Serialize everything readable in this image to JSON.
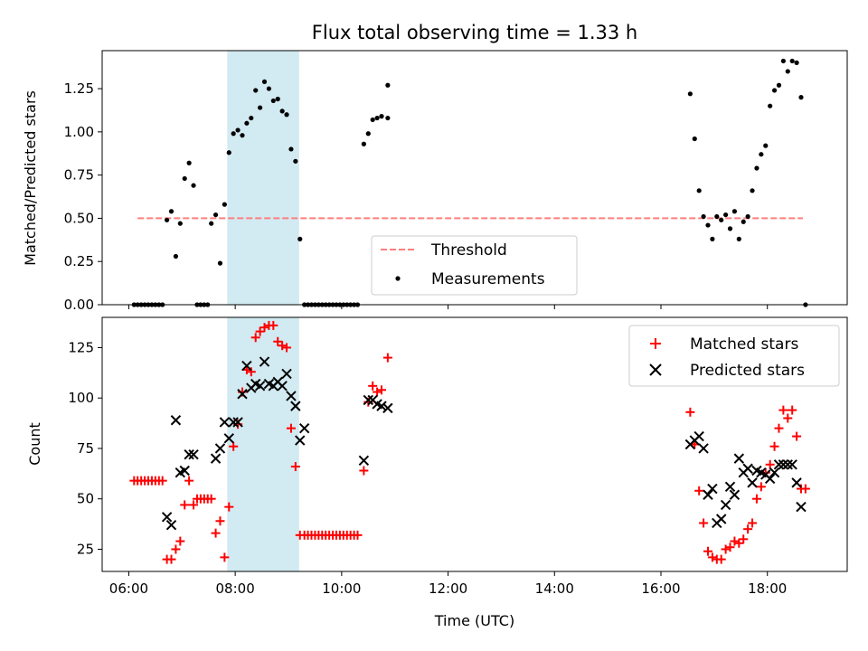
{
  "chart_data": [
    {
      "type": "scatter",
      "title": "Flux total observing time = 1.33 h",
      "xlabel": "",
      "ylabel": "Matched/Predicted stars",
      "ylim": [
        0,
        1.47
      ],
      "y_ticks": [
        "0.00",
        "0.25",
        "0.50",
        "0.75",
        "1.00",
        "1.25"
      ],
      "shaded_span": {
        "start": "07:51",
        "end": "09:12",
        "color": "#add8e6"
      },
      "threshold": {
        "name": "Threshold",
        "value": 0.5,
        "x_start": "06:10",
        "x_end": "18:40",
        "color": "#ff7f7f",
        "style": "dashed"
      },
      "legend": {
        "position": "lower-center",
        "entries": [
          "Threshold",
          "Measurements"
        ]
      },
      "series": [
        {
          "name": "Measurements",
          "marker": "dot",
          "color": "#000000",
          "points": [
            [
              "06:06",
              0
            ],
            [
              "06:10",
              0
            ],
            [
              "06:14",
              0
            ],
            [
              "06:18",
              0
            ],
            [
              "06:22",
              0
            ],
            [
              "06:26",
              0
            ],
            [
              "06:30",
              0
            ],
            [
              "06:34",
              0
            ],
            [
              "06:38",
              0
            ],
            [
              "06:43",
              0.49
            ],
            [
              "06:48",
              0.54
            ],
            [
              "06:53",
              0.28
            ],
            [
              "06:58",
              0.47
            ],
            [
              "07:03",
              0.73
            ],
            [
              "07:08",
              0.82
            ],
            [
              "07:13",
              0.69
            ],
            [
              "07:17",
              0
            ],
            [
              "07:21",
              0
            ],
            [
              "07:25",
              0
            ],
            [
              "07:29",
              0
            ],
            [
              "07:33",
              0.47
            ],
            [
              "07:38",
              0.52
            ],
            [
              "07:43",
              0.24
            ],
            [
              "07:48",
              0.58
            ],
            [
              "07:53",
              0.88
            ],
            [
              "07:58",
              0.99
            ],
            [
              "08:03",
              1.01
            ],
            [
              "08:08",
              0.98
            ],
            [
              "08:13",
              1.05
            ],
            [
              "08:18",
              1.08
            ],
            [
              "08:23",
              1.24
            ],
            [
              "08:28",
              1.14
            ],
            [
              "08:33",
              1.29
            ],
            [
              "08:38",
              1.25
            ],
            [
              "08:43",
              1.18
            ],
            [
              "08:48",
              1.19
            ],
            [
              "08:53",
              1.12
            ],
            [
              "08:58",
              1.1
            ],
            [
              "09:03",
              0.9
            ],
            [
              "09:08",
              0.83
            ],
            [
              "09:13",
              0.38
            ],
            [
              "09:18",
              0
            ],
            [
              "09:22",
              0
            ],
            [
              "09:26",
              0
            ],
            [
              "09:30",
              0
            ],
            [
              "09:34",
              0
            ],
            [
              "09:38",
              0
            ],
            [
              "09:42",
              0
            ],
            [
              "09:46",
              0
            ],
            [
              "09:50",
              0
            ],
            [
              "09:54",
              0
            ],
            [
              "09:58",
              0
            ],
            [
              "10:02",
              0
            ],
            [
              "10:06",
              0
            ],
            [
              "10:10",
              0
            ],
            [
              "10:14",
              0
            ],
            [
              "10:18",
              0
            ],
            [
              "10:25",
              0.93
            ],
            [
              "10:30",
              0.99
            ],
            [
              "10:35",
              1.07
            ],
            [
              "10:40",
              1.08
            ],
            [
              "10:45",
              1.09
            ],
            [
              "10:52",
              1.08
            ],
            [
              "10:52",
              1.27
            ],
            [
              "16:33",
              1.22
            ],
            [
              "16:38",
              0.96
            ],
            [
              "16:43",
              0.66
            ],
            [
              "16:48",
              0.51
            ],
            [
              "16:53",
              0.46
            ],
            [
              "16:58",
              0.38
            ],
            [
              "17:03",
              0.51
            ],
            [
              "17:08",
              0.49
            ],
            [
              "17:13",
              0.52
            ],
            [
              "17:18",
              0.44
            ],
            [
              "17:23",
              0.54
            ],
            [
              "17:28",
              0.38
            ],
            [
              "17:33",
              0.48
            ],
            [
              "17:38",
              0.51
            ],
            [
              "17:43",
              0.66
            ],
            [
              "17:48",
              0.79
            ],
            [
              "17:53",
              0.87
            ],
            [
              "17:58",
              0.92
            ],
            [
              "18:03",
              1.15
            ],
            [
              "18:08",
              1.24
            ],
            [
              "18:13",
              1.27
            ],
            [
              "18:18",
              1.41
            ],
            [
              "18:23",
              1.35
            ],
            [
              "18:28",
              1.41
            ],
            [
              "18:33",
              1.4
            ],
            [
              "18:38",
              1.2
            ],
            [
              "18:43",
              0
            ]
          ]
        }
      ]
    },
    {
      "type": "scatter",
      "title": "",
      "xlabel": "Time (UTC)",
      "ylabel": "Count",
      "xlim": [
        "05:30",
        "19:30"
      ],
      "ylim": [
        14,
        140
      ],
      "x_ticks": [
        "06:00",
        "08:00",
        "10:00",
        "12:00",
        "14:00",
        "16:00",
        "18:00"
      ],
      "y_ticks": [
        "25",
        "50",
        "75",
        "100",
        "125"
      ],
      "shaded_span": {
        "start": "07:51",
        "end": "09:12",
        "color": "#add8e6"
      },
      "legend": {
        "position": "top-right",
        "entries": [
          "Matched stars",
          "Predicted stars"
        ]
      },
      "series": [
        {
          "name": "Matched stars",
          "marker": "plus",
          "color": "#ff0000",
          "points": [
            [
              "06:06",
              59
            ],
            [
              "06:10",
              59
            ],
            [
              "06:14",
              59
            ],
            [
              "06:18",
              59
            ],
            [
              "06:22",
              59
            ],
            [
              "06:26",
              59
            ],
            [
              "06:30",
              59
            ],
            [
              "06:34",
              59
            ],
            [
              "06:38",
              59
            ],
            [
              "06:43",
              20
            ],
            [
              "06:48",
              20
            ],
            [
              "06:53",
              25
            ],
            [
              "06:58",
              29
            ],
            [
              "07:03",
              47
            ],
            [
              "07:08",
              59
            ],
            [
              "07:13",
              47
            ],
            [
              "07:17",
              50
            ],
            [
              "07:21",
              50
            ],
            [
              "07:25",
              50
            ],
            [
              "07:29",
              50
            ],
            [
              "07:33",
              50
            ],
            [
              "07:38",
              33
            ],
            [
              "07:43",
              39
            ],
            [
              "07:48",
              21
            ],
            [
              "07:53",
              46
            ],
            [
              "07:58",
              76
            ],
            [
              "08:03",
              87
            ],
            [
              "08:08",
              103
            ],
            [
              "08:13",
              114
            ],
            [
              "08:18",
              113
            ],
            [
              "08:23",
              130
            ],
            [
              "08:28",
              133
            ],
            [
              "08:33",
              135
            ],
            [
              "08:38",
              136
            ],
            [
              "08:43",
              136
            ],
            [
              "08:48",
              128
            ],
            [
              "08:53",
              126
            ],
            [
              "08:58",
              125
            ],
            [
              "09:03",
              85
            ],
            [
              "09:08",
              66
            ],
            [
              "09:13",
              32
            ],
            [
              "09:18",
              32
            ],
            [
              "09:22",
              32
            ],
            [
              "09:26",
              32
            ],
            [
              "09:30",
              32
            ],
            [
              "09:34",
              32
            ],
            [
              "09:38",
              32
            ],
            [
              "09:42",
              32
            ],
            [
              "09:46",
              32
            ],
            [
              "09:50",
              32
            ],
            [
              "09:54",
              32
            ],
            [
              "09:58",
              32
            ],
            [
              "10:02",
              32
            ],
            [
              "10:06",
              32
            ],
            [
              "10:10",
              32
            ],
            [
              "10:14",
              32
            ],
            [
              "10:18",
              32
            ],
            [
              "10:25",
              64
            ],
            [
              "10:30",
              98
            ],
            [
              "10:35",
              106
            ],
            [
              "10:40",
              103
            ],
            [
              "10:45",
              104
            ],
            [
              "10:52",
              120
            ],
            [
              "16:33",
              93
            ],
            [
              "16:38",
              77
            ],
            [
              "16:43",
              54
            ],
            [
              "16:48",
              38
            ],
            [
              "16:53",
              24
            ],
            [
              "16:58",
              21
            ],
            [
              "17:03",
              20
            ],
            [
              "17:08",
              20
            ],
            [
              "17:13",
              25
            ],
            [
              "17:18",
              26
            ],
            [
              "17:23",
              29
            ],
            [
              "17:28",
              28
            ],
            [
              "17:33",
              30
            ],
            [
              "17:38",
              35
            ],
            [
              "17:43",
              38
            ],
            [
              "17:48",
              50
            ],
            [
              "17:53",
              56
            ],
            [
              "17:58",
              63
            ],
            [
              "18:03",
              67
            ],
            [
              "18:08",
              76
            ],
            [
              "18:13",
              85
            ],
            [
              "18:18",
              94
            ],
            [
              "18:23",
              90
            ],
            [
              "18:28",
              94
            ],
            [
              "18:33",
              81
            ],
            [
              "18:38",
              55
            ],
            [
              "18:43",
              55
            ]
          ]
        },
        {
          "name": "Predicted stars",
          "marker": "x",
          "color": "#000000",
          "points": [
            [
              "06:43",
              41
            ],
            [
              "06:48",
              37
            ],
            [
              "06:53",
              89
            ],
            [
              "06:58",
              63
            ],
            [
              "07:03",
              64
            ],
            [
              "07:08",
              72
            ],
            [
              "07:13",
              72
            ],
            [
              "07:38",
              70
            ],
            [
              "07:43",
              75
            ],
            [
              "07:48",
              88
            ],
            [
              "07:53",
              80
            ],
            [
              "07:58",
              88
            ],
            [
              "08:03",
              88
            ],
            [
              "08:08",
              102
            ],
            [
              "08:13",
              116
            ],
            [
              "08:18",
              105
            ],
            [
              "08:23",
              107
            ],
            [
              "08:28",
              106
            ],
            [
              "08:33",
              118
            ],
            [
              "08:38",
              107
            ],
            [
              "08:43",
              106
            ],
            [
              "08:48",
              108
            ],
            [
              "08:53",
              106
            ],
            [
              "08:58",
              112
            ],
            [
              "09:03",
              101
            ],
            [
              "09:08",
              96
            ],
            [
              "09:13",
              79
            ],
            [
              "09:18",
              85
            ],
            [
              "10:25",
              69
            ],
            [
              "10:30",
              99
            ],
            [
              "10:35",
              99
            ],
            [
              "10:40",
              97
            ],
            [
              "10:45",
              96
            ],
            [
              "10:52",
              95
            ],
            [
              "16:33",
              77
            ],
            [
              "16:38",
              79
            ],
            [
              "16:43",
              81
            ],
            [
              "16:48",
              75
            ],
            [
              "16:53",
              52
            ],
            [
              "16:58",
              55
            ],
            [
              "17:03",
              38
            ],
            [
              "17:08",
              40
            ],
            [
              "17:13",
              47
            ],
            [
              "17:18",
              56
            ],
            [
              "17:23",
              52
            ],
            [
              "17:28",
              70
            ],
            [
              "17:33",
              63
            ],
            [
              "17:38",
              65
            ],
            [
              "17:43",
              58
            ],
            [
              "17:48",
              64
            ],
            [
              "17:53",
              63
            ],
            [
              "17:58",
              62
            ],
            [
              "18:03",
              60
            ],
            [
              "18:08",
              63
            ],
            [
              "18:13",
              67
            ],
            [
              "18:18",
              67
            ],
            [
              "18:23",
              67
            ],
            [
              "18:28",
              67
            ],
            [
              "18:33",
              58
            ],
            [
              "18:38",
              46
            ]
          ]
        }
      ]
    }
  ]
}
